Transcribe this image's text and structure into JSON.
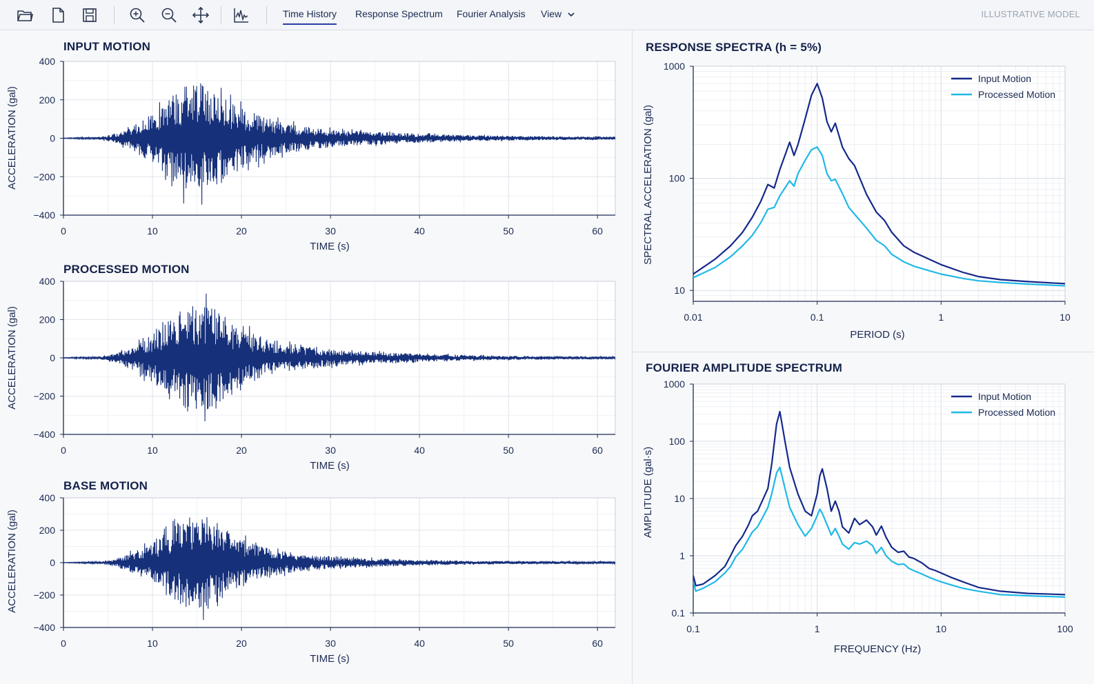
{
  "toolbar": {
    "tools": [
      {
        "name": "open-folder-icon"
      },
      {
        "name": "new-file-icon"
      },
      {
        "name": "save-icon"
      },
      {
        "name": "zoom-in-icon"
      },
      {
        "name": "zoom-out-icon"
      },
      {
        "name": "pan-icon"
      },
      {
        "name": "waveform-icon"
      }
    ],
    "tabs": [
      {
        "label": "Time History",
        "active": true
      },
      {
        "label": "Response Spectrum",
        "active": false
      },
      {
        "label": "Fourier Analysis",
        "active": false
      },
      {
        "label": "View",
        "active": false
      }
    ],
    "right_label": "ILLUSTRATIVE MODEL"
  },
  "colors": {
    "input": "#14288a",
    "processed": "#1fb8e6",
    "trace": "#16307a",
    "grid": "#e3e7ee"
  },
  "chart_data": [
    {
      "type": "line",
      "title": "INPUT MOTION",
      "xlabel": "TIME (s)",
      "ylabel": "ACCELERATION (gal)",
      "xlim": [
        0,
        62
      ],
      "ylim": [
        -400,
        400
      ],
      "xticks": [
        0,
        10,
        20,
        30,
        40,
        50,
        60
      ],
      "yticks": [
        400,
        200,
        0,
        -200,
        -400
      ],
      "grid": true,
      "series": [
        {
          "envelope": [
            [
              0,
              2
            ],
            [
              4,
              8
            ],
            [
              6,
              30
            ],
            [
              8,
              90
            ],
            [
              10,
              160
            ],
            [
              12,
              260
            ],
            [
              13,
              330
            ],
            [
              14,
              350
            ],
            [
              16,
              360
            ],
            [
              17,
              330
            ],
            [
              19,
              230
            ],
            [
              22,
              150
            ],
            [
              25,
              100
            ],
            [
              28,
              70
            ],
            [
              32,
              50
            ],
            [
              36,
              40
            ],
            [
              40,
              30
            ],
            [
              45,
              20
            ],
            [
              50,
              15
            ],
            [
              55,
              12
            ],
            [
              62,
              10
            ]
          ],
          "seed": 11
        }
      ]
    },
    {
      "type": "line",
      "title": "PROCESSED MOTION",
      "xlabel": "TIME (s)",
      "ylabel": "ACCELERATION (gal)",
      "xlim": [
        0,
        62
      ],
      "ylim": [
        -400,
        400
      ],
      "xticks": [
        0,
        10,
        20,
        30,
        40,
        50,
        60
      ],
      "yticks": [
        400,
        200,
        0,
        -200,
        -400
      ],
      "grid": true,
      "series": [
        {
          "envelope": [
            [
              0,
              2
            ],
            [
              4,
              8
            ],
            [
              6,
              30
            ],
            [
              8,
              90
            ],
            [
              10,
              160
            ],
            [
              12,
              250
            ],
            [
              13,
              320
            ],
            [
              14,
              340
            ],
            [
              16,
              345
            ],
            [
              17,
              320
            ],
            [
              19,
              220
            ],
            [
              22,
              140
            ],
            [
              25,
              95
            ],
            [
              28,
              65
            ],
            [
              32,
              45
            ],
            [
              36,
              35
            ],
            [
              40,
              28
            ],
            [
              45,
              18
            ],
            [
              50,
              14
            ],
            [
              55,
              10
            ],
            [
              62,
              8
            ]
          ],
          "seed": 23
        }
      ]
    },
    {
      "type": "line",
      "title": "BASE MOTION",
      "xlabel": "TIME (s)",
      "ylabel": "ACCELERATION (gal)",
      "xlim": [
        0,
        62
      ],
      "ylim": [
        -400,
        400
      ],
      "xticks": [
        0,
        10,
        20,
        30,
        40,
        50,
        60
      ],
      "yticks": [
        400,
        200,
        0,
        -200,
        -400
      ],
      "grid": true,
      "series": [
        {
          "envelope": [
            [
              0,
              2
            ],
            [
              4,
              8
            ],
            [
              6,
              30
            ],
            [
              8,
              90
            ],
            [
              10,
              150
            ],
            [
              12,
              260
            ],
            [
              13,
              330
            ],
            [
              14,
              350
            ],
            [
              16,
              360
            ],
            [
              17,
              320
            ],
            [
              19,
              220
            ],
            [
              22,
              130
            ],
            [
              25,
              85
            ],
            [
              28,
              55
            ],
            [
              32,
              40
            ],
            [
              36,
              30
            ],
            [
              40,
              22
            ],
            [
              45,
              15
            ],
            [
              50,
              12
            ],
            [
              55,
              10
            ],
            [
              62,
              8
            ]
          ],
          "seed": 37
        }
      ]
    },
    {
      "type": "line",
      "title": "RESPONSE SPECTRA (h = 5%)",
      "xlabel": "PERIOD (s)",
      "ylabel": "SPECTRAL ACCELERATION (gal)",
      "xscale": "log",
      "yscale": "log",
      "xlim": [
        0.01,
        10
      ],
      "ylim": [
        8,
        1000
      ],
      "xticks": [
        0.01,
        0.1,
        1,
        10
      ],
      "xticklabels": [
        "0.01",
        "0.1",
        "1",
        "10"
      ],
      "yticks": [
        1000,
        100,
        10
      ],
      "yticklabels": [
        "1000",
        "100",
        "10"
      ],
      "grid": true,
      "legend": "top-right",
      "series": [
        {
          "name": "Input Motion",
          "color": "#14288a",
          "x": [
            0.01,
            0.015,
            0.02,
            0.025,
            0.03,
            0.035,
            0.04,
            0.045,
            0.05,
            0.055,
            0.06,
            0.065,
            0.07,
            0.08,
            0.09,
            0.1,
            0.11,
            0.12,
            0.13,
            0.14,
            0.16,
            0.18,
            0.2,
            0.25,
            0.3,
            0.35,
            0.4,
            0.5,
            0.6,
            0.8,
            1,
            1.5,
            2,
            3,
            5,
            10
          ],
          "y": [
            14,
            19,
            25,
            33,
            45,
            62,
            88,
            82,
            120,
            160,
            210,
            160,
            200,
            340,
            550,
            700,
            520,
            320,
            260,
            310,
            190,
            150,
            130,
            72,
            50,
            42,
            33,
            25,
            22,
            19,
            17,
            14.5,
            13.3,
            12.5,
            12,
            11.5
          ]
        },
        {
          "name": "Processed Motion",
          "color": "#1fb8e6",
          "x": [
            0.01,
            0.015,
            0.02,
            0.025,
            0.03,
            0.035,
            0.04,
            0.045,
            0.05,
            0.055,
            0.06,
            0.065,
            0.07,
            0.08,
            0.09,
            0.1,
            0.11,
            0.12,
            0.13,
            0.14,
            0.16,
            0.18,
            0.2,
            0.25,
            0.3,
            0.35,
            0.4,
            0.5,
            0.6,
            0.8,
            1,
            1.5,
            2,
            3,
            5,
            10
          ],
          "y": [
            13,
            16,
            20,
            25,
            31,
            40,
            53,
            55,
            70,
            82,
            95,
            85,
            110,
            145,
            180,
            190,
            160,
            110,
            95,
            98,
            73,
            55,
            48,
            36,
            28,
            25,
            21,
            18,
            16.5,
            15,
            14,
            12.8,
            12.2,
            11.8,
            11.4,
            11
          ]
        }
      ]
    },
    {
      "type": "line",
      "title": "FOURIER AMPLITUDE SPECTRUM",
      "xlabel": "FREQUENCY (Hz)",
      "ylabel": "AMPLITUDE (gal·s)",
      "xscale": "log",
      "yscale": "log",
      "xlim": [
        0.1,
        100
      ],
      "ylim": [
        0.1,
        1000
      ],
      "xticks": [
        0.1,
        1,
        10,
        100
      ],
      "xticklabels": [
        "0.1",
        "1",
        "10",
        "100"
      ],
      "yticks": [
        1000,
        100,
        10,
        1,
        0.1
      ],
      "yticklabels": [
        "1000",
        "100",
        "10",
        "1",
        "0.1"
      ],
      "grid": true,
      "legend": "top-right",
      "series": [
        {
          "name": "Input Motion",
          "color": "#14288a",
          "x": [
            0.1,
            0.105,
            0.12,
            0.15,
            0.18,
            0.2,
            0.22,
            0.25,
            0.28,
            0.3,
            0.33,
            0.36,
            0.4,
            0.43,
            0.47,
            0.5,
            0.55,
            0.6,
            0.7,
            0.8,
            0.9,
            1,
            1.05,
            1.1,
            1.2,
            1.3,
            1.4,
            1.5,
            1.6,
            1.8,
            2,
            2.2,
            2.5,
            2.8,
            3,
            3.3,
            3.6,
            4,
            4.5,
            5,
            5.5,
            6,
            7,
            8,
            9,
            10,
            12,
            15,
            20,
            30,
            50,
            100
          ],
          "y": [
            0.45,
            0.3,
            0.32,
            0.45,
            0.65,
            1.0,
            1.5,
            2.2,
            3.5,
            5,
            6,
            9,
            15,
            40,
            200,
            330,
            100,
            35,
            12,
            6,
            5,
            12,
            25,
            33,
            15,
            6,
            9,
            6,
            3.2,
            2.5,
            4.5,
            3.5,
            4.2,
            3.2,
            2.3,
            3.3,
            2.1,
            1.4,
            1.15,
            1.2,
            0.95,
            0.9,
            0.75,
            0.6,
            0.55,
            0.5,
            0.42,
            0.35,
            0.28,
            0.24,
            0.22,
            0.21
          ]
        },
        {
          "name": "Processed Motion",
          "color": "#1fb8e6",
          "x": [
            0.1,
            0.105,
            0.12,
            0.15,
            0.18,
            0.2,
            0.22,
            0.25,
            0.28,
            0.3,
            0.33,
            0.36,
            0.4,
            0.43,
            0.47,
            0.5,
            0.55,
            0.6,
            0.7,
            0.8,
            0.9,
            1,
            1.05,
            1.1,
            1.2,
            1.3,
            1.4,
            1.5,
            1.6,
            1.8,
            2,
            2.2,
            2.5,
            2.8,
            3,
            3.3,
            3.6,
            4,
            4.5,
            5,
            5.5,
            6,
            7,
            8,
            9,
            10,
            12,
            15,
            20,
            30,
            50,
            100
          ],
          "y": [
            0.35,
            0.24,
            0.27,
            0.35,
            0.5,
            0.65,
            0.95,
            1.3,
            2.0,
            2.6,
            3.2,
            4.5,
            7,
            12,
            28,
            35,
            15,
            7,
            3.5,
            2.2,
            3,
            5,
            6.5,
            5.5,
            3.5,
            2.3,
            3,
            2.2,
            1.6,
            1.3,
            1.7,
            1.6,
            1.8,
            1.5,
            1.1,
            1.4,
            1,
            0.8,
            0.7,
            0.72,
            0.6,
            0.55,
            0.48,
            0.42,
            0.38,
            0.35,
            0.31,
            0.27,
            0.24,
            0.21,
            0.2,
            0.19
          ]
        }
      ]
    }
  ]
}
